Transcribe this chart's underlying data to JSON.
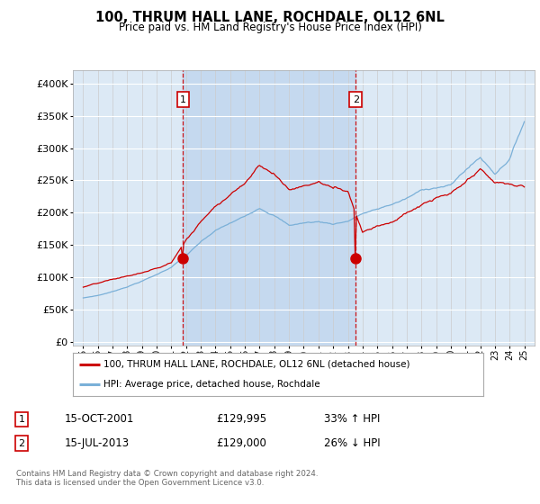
{
  "title": "100, THRUM HALL LANE, ROCHDALE, OL12 6NL",
  "subtitle": "Price paid vs. HM Land Registry's House Price Index (HPI)",
  "yticks": [
    0,
    50000,
    100000,
    150000,
    200000,
    250000,
    300000,
    350000,
    400000
  ],
  "ylim": [
    -5000,
    420000
  ],
  "bg_color": "#dce9f5",
  "shade_color": "#c5d9ef",
  "hpi_color": "#7ab0d8",
  "price_color": "#cc0000",
  "vline_color": "#cc0000",
  "legend_line1": "100, THRUM HALL LANE, ROCHDALE, OL12 6NL (detached house)",
  "legend_line2": "HPI: Average price, detached house, Rochdale",
  "sale1_label": "1",
  "sale1_date": "15-OCT-2001",
  "sale1_price": "£129,995",
  "sale1_hpi": "33% ↑ HPI",
  "sale1_x": 2001.79,
  "sale1_value": 129995,
  "sale2_label": "2",
  "sale2_date": "15-JUL-2013",
  "sale2_price": "£129,000",
  "sale2_hpi": "26% ↓ HPI",
  "sale2_x": 2013.54,
  "sale2_value": 129000,
  "footnote": "Contains HM Land Registry data © Crown copyright and database right 2024.\nThis data is licensed under the Open Government Licence v3.0."
}
